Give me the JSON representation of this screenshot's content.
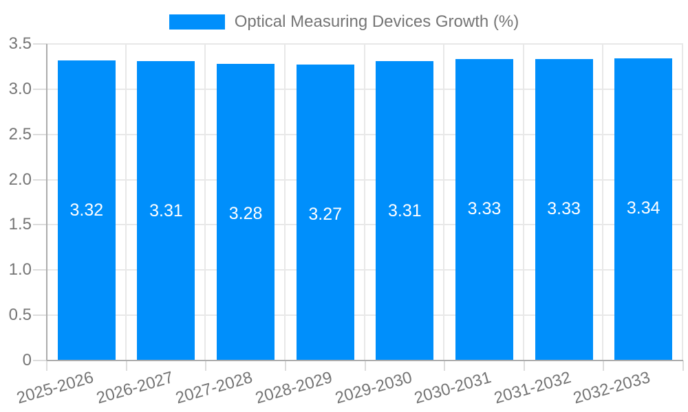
{
  "chart_data": {
    "type": "bar",
    "title": "",
    "categories": [
      "2025-2026",
      "2026-2027",
      "2027-2028",
      "2028-2029",
      "2029-2030",
      "2030-2031",
      "2031-2032",
      "2032-2033"
    ],
    "series": [
      {
        "name": "Optical Measuring Devices Growth (%)",
        "values": [
          3.32,
          3.31,
          3.28,
          3.27,
          3.31,
          3.33,
          3.33,
          3.34
        ],
        "value_labels": [
          "3.32",
          "3.31",
          "3.28",
          "3.27",
          "3.31",
          "3.33",
          "3.33",
          "3.34"
        ]
      }
    ],
    "xlabel": "",
    "ylabel": "",
    "ylim": [
      0,
      3.5
    ],
    "ytick_step": 0.5,
    "ytick_labels": [
      "0",
      "0.5",
      "1.0",
      "1.5",
      "2.0",
      "2.5",
      "3.0",
      "3.5"
    ],
    "grid": true,
    "legend_position": "top",
    "colors": {
      "bar": "#008FFB",
      "value_label": "#FFFFFF",
      "axis_label": "#757575",
      "legend_label": "#757575",
      "gridline": "#E8E8E8",
      "tick": "#DCDCDC",
      "axis_line": "#ACACAC",
      "background": "#FFFFFF"
    }
  }
}
